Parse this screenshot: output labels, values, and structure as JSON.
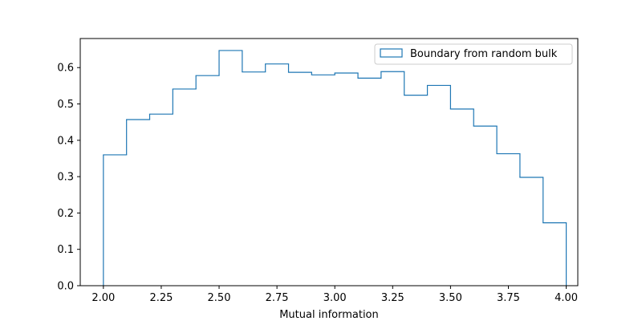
{
  "chart_data": {
    "type": "histogram",
    "style": "step",
    "title": "",
    "xlabel": "Mutual information",
    "ylabel": "",
    "xlim": [
      1.9,
      4.05
    ],
    "ylim": [
      0,
      0.68
    ],
    "xticks": [
      2.0,
      2.25,
      2.5,
      2.75,
      3.0,
      3.25,
      3.5,
      3.75,
      4.0
    ],
    "xtick_labels": [
      "2.00",
      "2.25",
      "2.50",
      "2.75",
      "3.00",
      "3.25",
      "3.50",
      "3.75",
      "4.00"
    ],
    "yticks": [
      0.0,
      0.1,
      0.2,
      0.3,
      0.4,
      0.5,
      0.6
    ],
    "ytick_labels": [
      "0.0",
      "0.1",
      "0.2",
      "0.3",
      "0.4",
      "0.5",
      "0.6"
    ],
    "bin_edges": [
      2.0,
      2.1,
      2.2,
      2.3,
      2.4,
      2.5,
      2.6,
      2.7,
      2.8,
      2.9,
      3.0,
      3.1,
      3.2,
      3.3,
      3.4,
      3.5,
      3.6,
      3.7,
      3.8,
      3.9,
      4.0
    ],
    "series": [
      {
        "name": "Boundary from random bulk",
        "color": "#1f77b4",
        "values": [
          0.36,
          0.457,
          0.472,
          0.541,
          0.578,
          0.647,
          0.588,
          0.61,
          0.587,
          0.58,
          0.585,
          0.571,
          0.589,
          0.524,
          0.551,
          0.486,
          0.439,
          0.363,
          0.298,
          0.173
        ]
      }
    ],
    "legend": {
      "placement": "upper right",
      "entries": [
        "Boundary from random bulk"
      ]
    },
    "grid": false
  }
}
